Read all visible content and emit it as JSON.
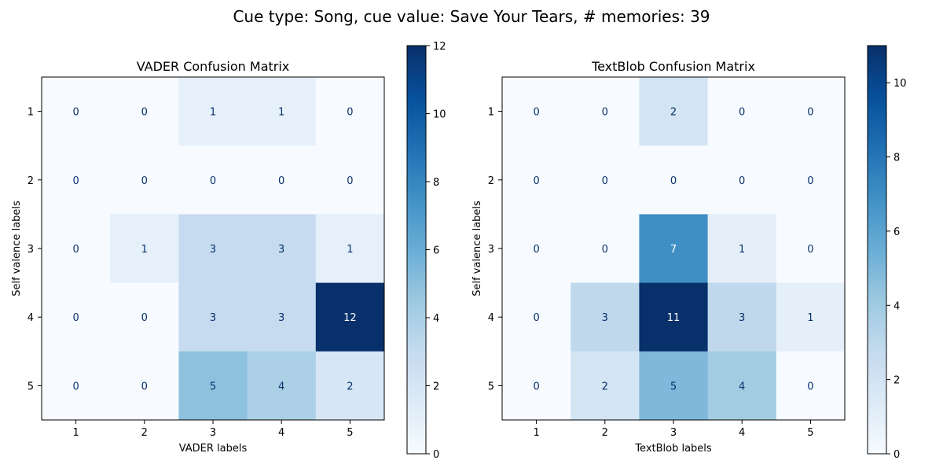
{
  "figure": {
    "suptitle": "Cue type: Song, cue value: Save Your Tears, # memories: 39"
  },
  "chart_data": [
    {
      "type": "heatmap",
      "title": "VADER Confusion Matrix",
      "xlabel": "VADER labels",
      "ylabel": "Self valence labels",
      "x_categories": [
        "1",
        "2",
        "3",
        "4",
        "5"
      ],
      "y_categories": [
        "1",
        "2",
        "3",
        "4",
        "5"
      ],
      "values": [
        [
          0,
          0,
          1,
          1,
          0
        ],
        [
          0,
          0,
          0,
          0,
          0
        ],
        [
          0,
          1,
          3,
          3,
          1
        ],
        [
          0,
          0,
          3,
          3,
          12
        ],
        [
          0,
          0,
          5,
          4,
          2
        ]
      ],
      "colormap": "Blues",
      "colorbar": {
        "min": 0,
        "max": 12,
        "ticks": [
          "0",
          "2",
          "4",
          "6",
          "8",
          "10",
          "12"
        ]
      }
    },
    {
      "type": "heatmap",
      "title": "TextBlob Confusion Matrix",
      "xlabel": "TextBlob labels",
      "ylabel": "Self valence labels",
      "x_categories": [
        "1",
        "2",
        "3",
        "4",
        "5"
      ],
      "y_categories": [
        "1",
        "2",
        "3",
        "4",
        "5"
      ],
      "values": [
        [
          0,
          0,
          2,
          0,
          0
        ],
        [
          0,
          0,
          0,
          0,
          0
        ],
        [
          0,
          0,
          7,
          1,
          0
        ],
        [
          0,
          3,
          11,
          3,
          1
        ],
        [
          0,
          2,
          5,
          4,
          0
        ]
      ],
      "colormap": "Blues",
      "colorbar": {
        "min": 0,
        "max": 11,
        "ticks": [
          "0",
          "2",
          "4",
          "6",
          "8",
          "10"
        ]
      }
    }
  ]
}
